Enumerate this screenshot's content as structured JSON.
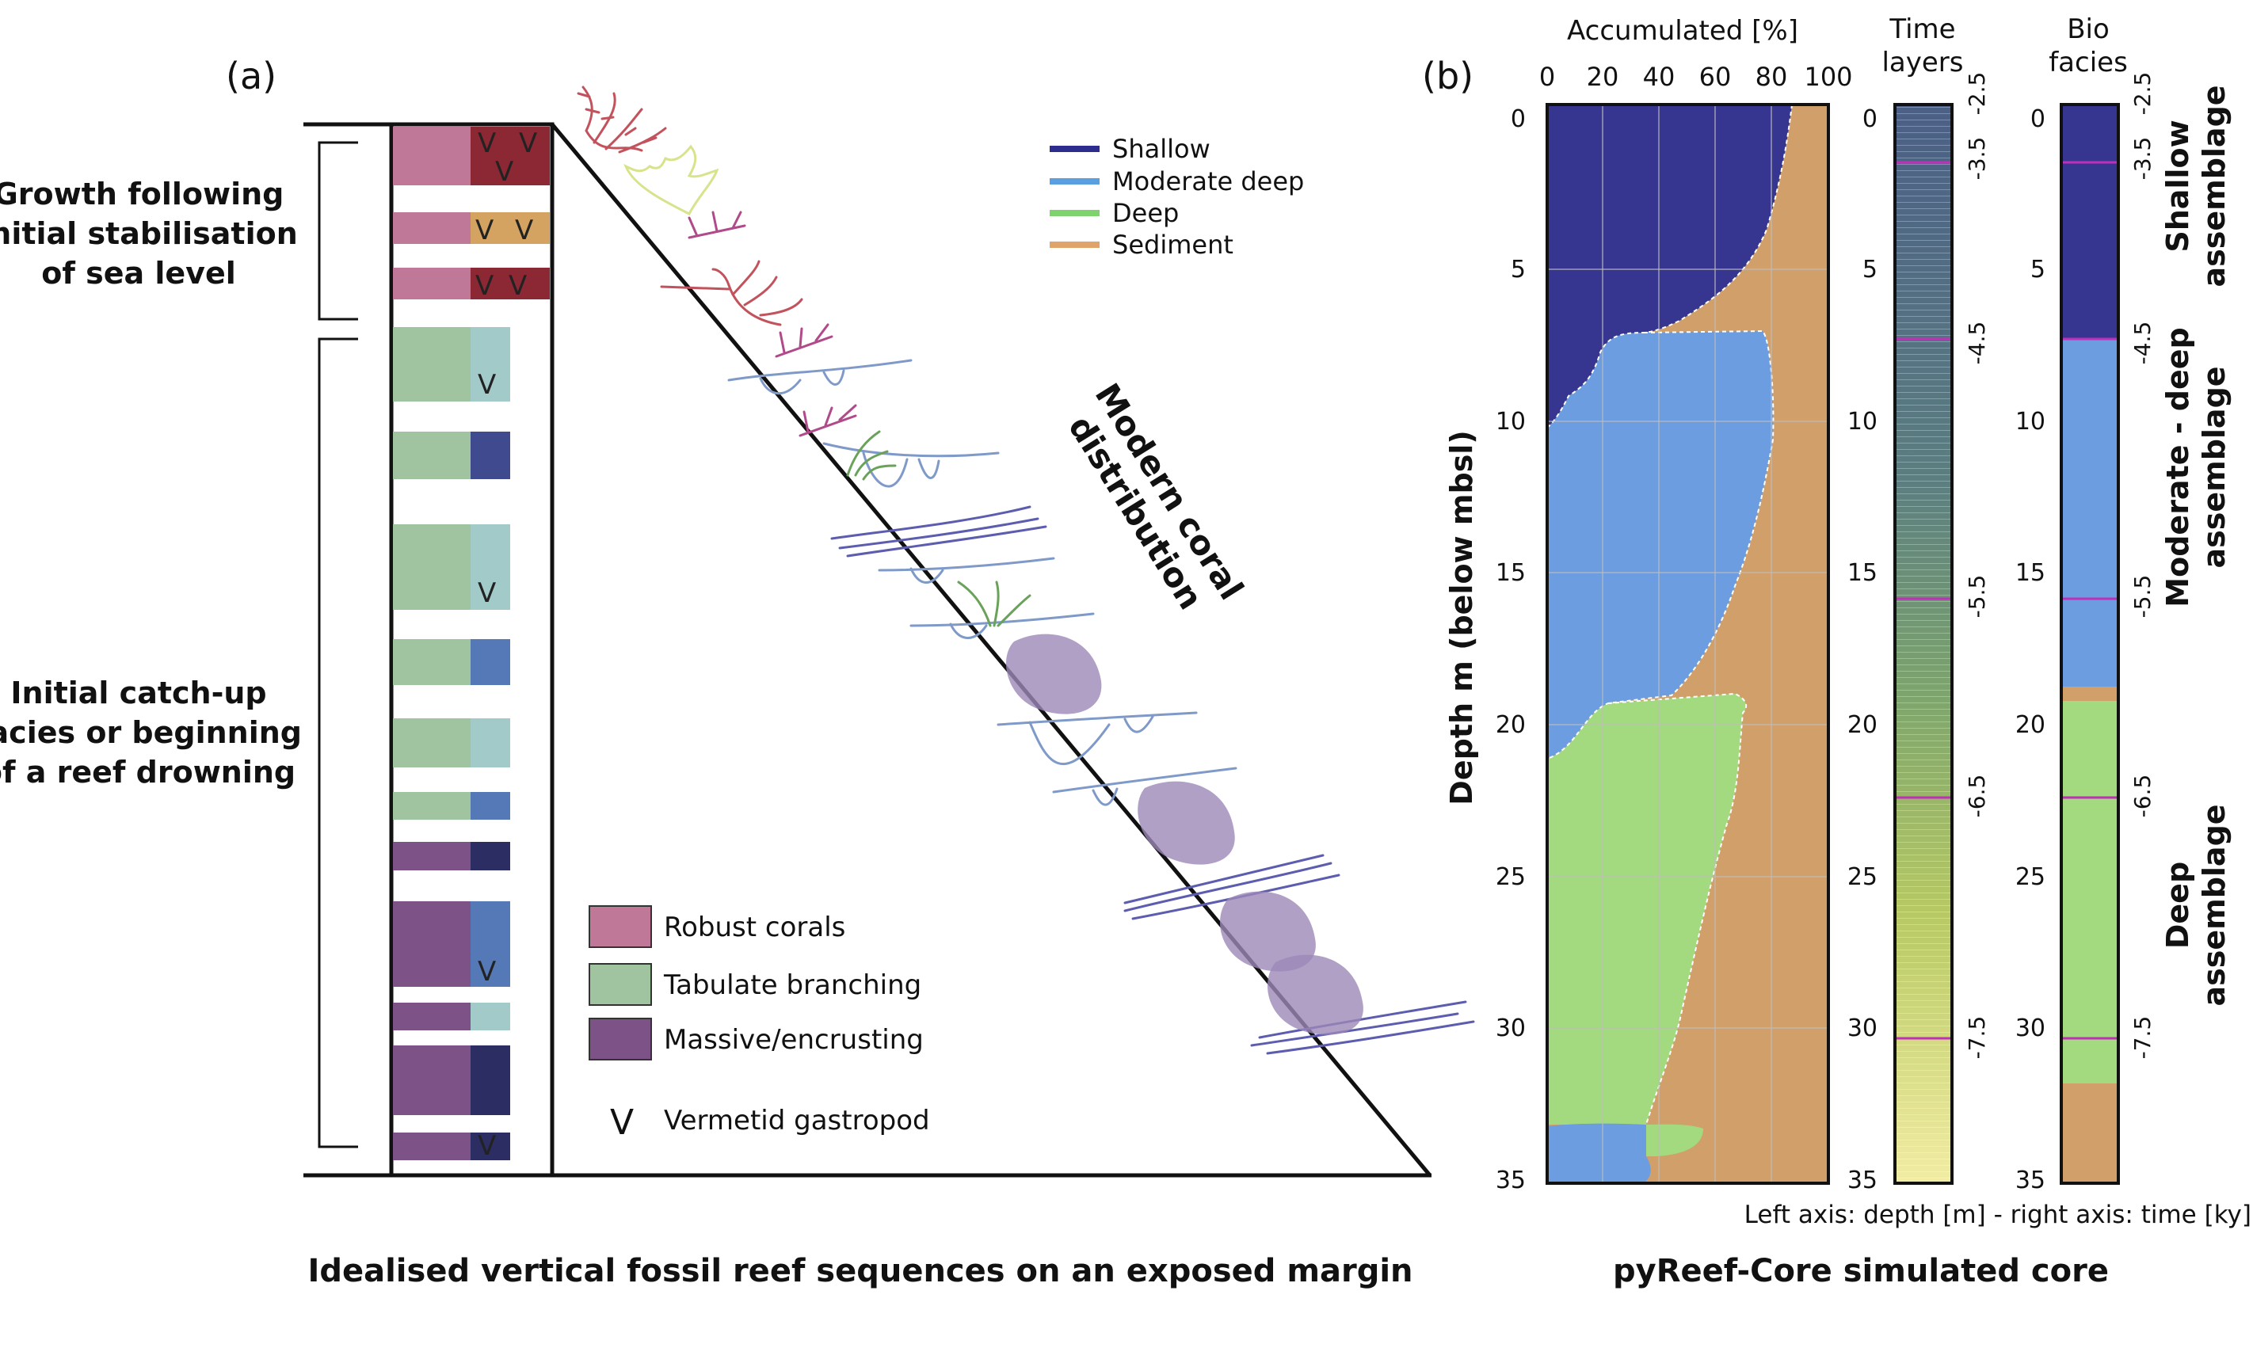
{
  "panel_a": {
    "label": "(a)",
    "bracket_upper": [
      "Growth following",
      "initial stabilisation",
      "of sea level"
    ],
    "bracket_lower": [
      "Initial catch-up",
      "facies or beginning",
      "of a reef drowning"
    ],
    "slope_label": [
      "Modern coral",
      "distribution"
    ],
    "legend": {
      "robust": "Robust corals",
      "tabulate": "Tabulate branching",
      "massive": "Massive/encrusting",
      "vermetid_symbol": "V",
      "vermetid": "Vermetid gastropod"
    },
    "caption": "Idealised vertical fossil reef sequences on an exposed margin",
    "colors": {
      "robust": "#bf7897",
      "robust_dark": "#8b2834",
      "robust_sand": "#d4a361",
      "tabulate": "#a0c49f",
      "tabulate_light": "#a2cac9",
      "massive": "#7c5287",
      "blue_mid": "#5578b6",
      "blue_dark": "#404a8e",
      "navy": "#2b2d63"
    }
  },
  "panel_b": {
    "label": "(b)",
    "legend": [
      {
        "label": "Shallow",
        "color": "#2d2d8e"
      },
      {
        "label": "Moderate deep",
        "color": "#5aa0e0"
      },
      {
        "label": "Deep",
        "color": "#7fd36f"
      },
      {
        "label": "Sediment",
        "color": "#e0a36a"
      }
    ],
    "top_axis_label": "Accumulated [%]",
    "top_ticks": [
      "0",
      "20",
      "40",
      "60",
      "80",
      "100"
    ],
    "y_label": "Depth m (below mbsl)",
    "depth_ticks": [
      "0",
      "5",
      "10",
      "15",
      "20",
      "25",
      "30",
      "35"
    ],
    "time_title": [
      "Time",
      "layers"
    ],
    "bio_title": [
      "Bio",
      "facies"
    ],
    "time_ticks": [
      "-2.5",
      "-3.5",
      "-4.5",
      "-5.5",
      "-6.5",
      "-7.5"
    ],
    "facies_labels": [
      [
        "Shallow",
        "assemblage"
      ],
      [
        "Moderate - deep",
        "assemblage"
      ],
      [
        "Deep",
        "assemblage"
      ]
    ],
    "axis_note": "Left axis: depth [m] - right axis: time [ky]",
    "caption": "pyReef-Core simulated core",
    "colors": {
      "shallow": "#363690",
      "moderate": "#6c9de0",
      "deep": "#a3da80",
      "sediment": "#d1a06a",
      "time_line": "#c02fb8"
    }
  },
  "chart_data": {
    "type": "area",
    "x_axis": "Accumulated [%]",
    "xlim": [
      0,
      100
    ],
    "y_axis": "Depth m (below mbsl)",
    "ylim": [
      0,
      35
    ],
    "series": [
      {
        "name": "Shallow",
        "depth_range": [
          0,
          10.5
        ]
      },
      {
        "name": "Moderate deep",
        "depth_range": [
          7.2,
          21.5
        ]
      },
      {
        "name": "Deep",
        "depth_range": [
          19.2,
          33.8
        ]
      },
      {
        "name": "Sediment",
        "depth_range": [
          0,
          35
        ]
      }
    ],
    "time_layers": {
      "depths": [
        1.5,
        7.2,
        15.9,
        22.5,
        30.5
      ],
      "labels": [
        "-3.5",
        "-4.5",
        "-5.5",
        "-6.5",
        "-7.5"
      ]
    },
    "bio_facies": [
      {
        "name": "Shallow",
        "from": 0,
        "to": 7.2
      },
      {
        "name": "Moderate - deep",
        "from": 7.2,
        "to": 18.8
      },
      {
        "name": "Sediment",
        "from": 18.8,
        "to": 19.2
      },
      {
        "name": "Deep",
        "from": 19.2,
        "to": 31.9
      },
      {
        "name": "Sediment",
        "from": 31.9,
        "to": 35
      }
    ]
  }
}
